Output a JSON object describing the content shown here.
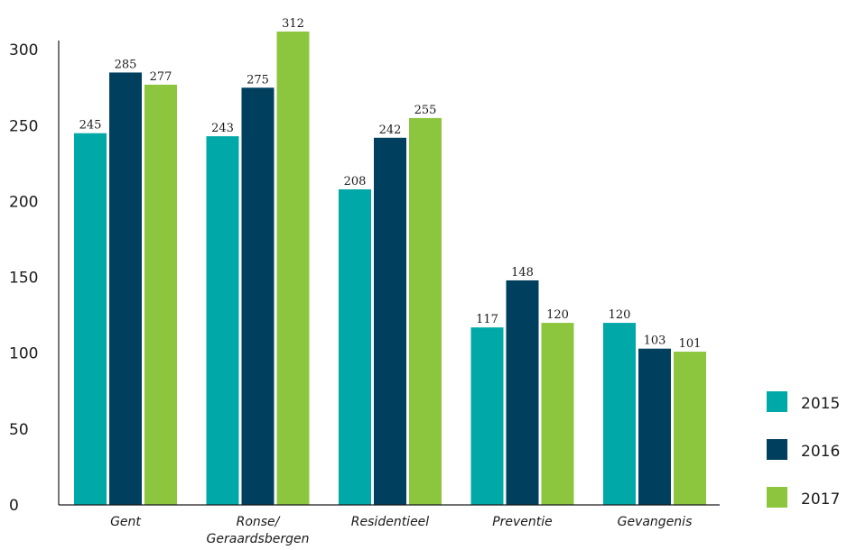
{
  "chart_data": {
    "type": "bar",
    "categories": [
      "Gent",
      "Ronse/\nGeraardsbergen",
      "Residentieel",
      "Preventie",
      "Gevangenis"
    ],
    "series": [
      {
        "name": "2015",
        "color": "#00a9a7",
        "values": [
          245,
          243,
          208,
          117,
          120
        ]
      },
      {
        "name": "2016",
        "color": "#013f5e",
        "values": [
          285,
          275,
          242,
          148,
          103
        ]
      },
      {
        "name": "2017",
        "color": "#8cc63f",
        "values": [
          277,
          312,
          255,
          120,
          101
        ]
      }
    ],
    "yticks": [
      0,
      50,
      100,
      150,
      200,
      250,
      300
    ],
    "ylim": [
      0,
      312
    ],
    "legend_position": "bottom-right",
    "grid": false
  }
}
